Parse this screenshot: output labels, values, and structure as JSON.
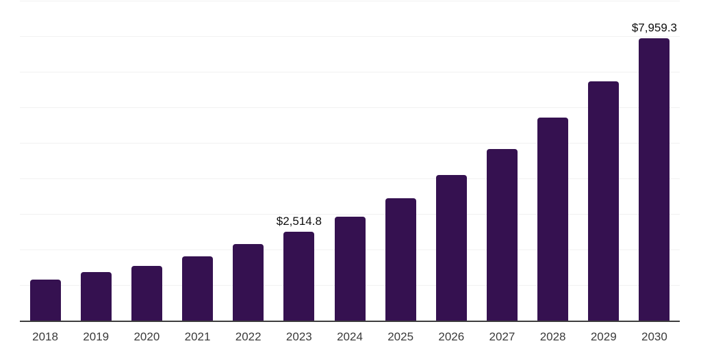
{
  "chart_data": {
    "type": "bar",
    "title": "",
    "xlabel": "",
    "ylabel": "",
    "categories": [
      "2018",
      "2019",
      "2020",
      "2021",
      "2022",
      "2023",
      "2024",
      "2025",
      "2026",
      "2027",
      "2028",
      "2029",
      "2030"
    ],
    "values": [
      1176.4,
      1378.1,
      1564.5,
      1825.9,
      2171.9,
      2514.8,
      2948.3,
      3453.8,
      4113.1,
      4851.1,
      5727.6,
      6754.0,
      7959.3
    ],
    "data_labels": [
      "",
      "",
      "",
      "",
      "",
      "$2,514.8",
      "",
      "",
      "",
      "",
      "",
      "",
      "$7,959.3"
    ],
    "ylim": [
      0,
      9000
    ],
    "gridline_interval": 1000,
    "grid": true,
    "legend": "none",
    "colors": {
      "bar": "#351150",
      "gridline": "#f1f1f1",
      "axis_line": "#3d3d3d",
      "tick_label": "#3a3a3a",
      "data_label": "#0d0d0d",
      "background": "#ffffff"
    }
  }
}
